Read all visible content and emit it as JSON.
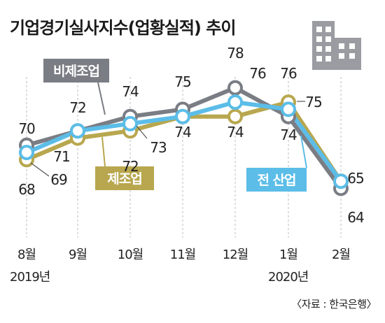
{
  "chart_data": {
    "type": "line",
    "title": "기업경기실사지수(업황실적) 추이",
    "categories": [
      "8월",
      "9월",
      "10월",
      "11월",
      "12월",
      "1월",
      "2월"
    ],
    "year_labels": [
      "2019년",
      "2020년"
    ],
    "ylim": [
      62,
      80
    ],
    "grid": "vertical-dashed",
    "series": [
      {
        "name": "비제조업",
        "values": [
          70,
          72,
          74,
          75,
          78,
          74,
          64
        ],
        "color": "#7a7d84"
      },
      {
        "name": "제조업",
        "values": [
          68,
          71,
          72,
          74,
          74,
          76,
          65
        ],
        "color": "#b8a74e"
      },
      {
        "name": "전 산업",
        "values": [
          69,
          72,
          73,
          74,
          76,
          75,
          65
        ],
        "color": "#5bbde8"
      }
    ],
    "data_labels": {
      "nonmfg": [
        "70",
        "72",
        "74",
        "75",
        "78",
        "74",
        "64"
      ],
      "mfg": [
        "68",
        "71",
        "72",
        "74",
        "74",
        "76",
        ""
      ],
      "all": [
        "69",
        "",
        "73",
        "",
        "76",
        "75",
        "65"
      ]
    },
    "source": "〈자료 : 한국은행〉",
    "icon": "building-icon"
  }
}
